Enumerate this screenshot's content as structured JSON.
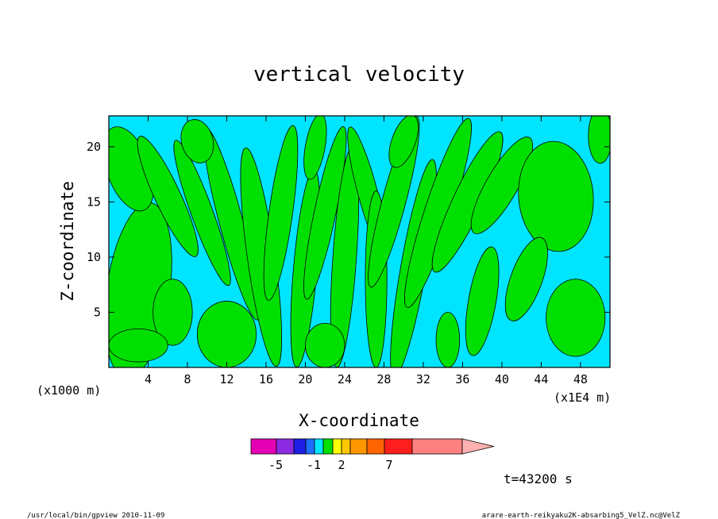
{
  "chart_data": {
    "type": "heatmap",
    "title": "vertical velocity",
    "xlabel": "X-coordinate",
    "ylabel": "Z-coordinate",
    "x_unit_note": "(x1E4 m)",
    "y_unit_note": "(x1000 m)",
    "xlim": [
      0,
      51
    ],
    "ylim": [
      0,
      22.8
    ],
    "x_ticks": [
      "4",
      "8",
      "12",
      "16",
      "20",
      "24",
      "28",
      "32",
      "36",
      "40",
      "44",
      "48"
    ],
    "y_ticks": [
      "5",
      "10",
      "15",
      "20"
    ],
    "field_levels": {
      "negative_fill": "#00e5ff",
      "positive_fill": "#00e000",
      "contour_color": "#000000"
    },
    "colorbar": {
      "colors": [
        "#e600b4",
        "#8a2be2",
        "#1e1ee6",
        "#1e6eff",
        "#00e5ff",
        "#00e000",
        "#ffff00",
        "#ffc800",
        "#ff9600",
        "#ff6400",
        "#ff1e1e",
        "#ff8080",
        "#ffb0b0"
      ],
      "labels": [
        "-5",
        "-1",
        "2",
        "7"
      ]
    },
    "time_label": "t=43200 s",
    "grid": false,
    "legend": "bottom-center"
  },
  "footer": {
    "left": "/usr/local/bin/gpview  2010-11-09",
    "right": "arare-earth-reikyaku2K-absarbing5_VelZ.nc@VelZ"
  }
}
